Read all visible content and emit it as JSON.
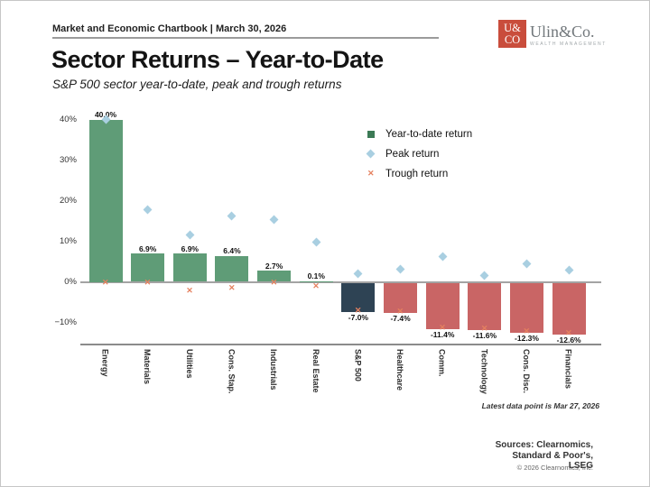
{
  "header": {
    "kicker": "Market and Economic Chartbook | March 30, 2026",
    "logo_square_line1": "U&",
    "logo_square_line2": "CO",
    "logo_name": "Ulin&Co.",
    "logo_sub": "WEALTH MANAGEMENT"
  },
  "title": "Sector Returns – Year-to-Date",
  "subtitle": "S&P 500 sector year-to-date, peak and trough returns",
  "legend": {
    "ytd_label": "Year-to-date return",
    "peak_label": "Peak return",
    "trough_label": "Trough return"
  },
  "colors": {
    "bar_positive": "#5f9c77",
    "bar_sp500": "#2e4354",
    "bar_negative": "#c96565",
    "peak_marker": "#a9cfe1",
    "trough_marker": "#e5815f",
    "legend_green": "#3c7a55"
  },
  "chart_data": {
    "type": "bar",
    "title": "Sector Returns – Year-to-Date",
    "xlabel": "",
    "ylabel": "",
    "ylim": [
      -15,
      42
    ],
    "grid": false,
    "legend_position": "upper center-right",
    "categories": [
      "Energy",
      "Materials",
      "Utilities",
      "Cons. Stap.",
      "Industrials",
      "Real Estate",
      "S&P 500",
      "Healthcare",
      "Comm.",
      "Technology",
      "Cons. Disc.",
      "Financials"
    ],
    "series": [
      {
        "name": "Year-to-date return",
        "values": [
          40.0,
          6.9,
          6.9,
          6.4,
          2.7,
          0.1,
          -7.0,
          -7.4,
          -11.4,
          -11.6,
          -12.3,
          -12.6
        ]
      },
      {
        "name": "Peak return",
        "values": [
          40.0,
          17.8,
          11.5,
          16.2,
          15.3,
          9.7,
          2.0,
          3.2,
          6.2,
          1.6,
          4.5,
          2.8
        ]
      },
      {
        "name": "Trough return",
        "values": [
          -0.2,
          -0.2,
          -2.3,
          -1.5,
          -0.3,
          -1.0,
          -7.0,
          -7.4,
          -11.4,
          -11.6,
          -12.3,
          -12.6
        ]
      }
    ],
    "bar_value_labels": [
      "40.0%",
      "6.9%",
      "6.9%",
      "6.4%",
      "2.7%",
      "0.1%",
      "-7.0%",
      "-7.4%",
      "-11.4%",
      "-11.6%",
      "-12.3%",
      "-12.6%"
    ],
    "color_roles": [
      "bar_positive",
      "bar_positive",
      "bar_positive",
      "bar_positive",
      "bar_positive",
      "bar_positive",
      "bar_sp500",
      "bar_negative",
      "bar_negative",
      "bar_negative",
      "bar_negative",
      "bar_negative"
    ],
    "yticks": [
      {
        "label": "40%",
        "value": 40
      },
      {
        "label": "30%",
        "value": 30
      },
      {
        "label": "20%",
        "value": 20
      },
      {
        "label": "10%",
        "value": 10
      },
      {
        "label": "0%",
        "value": 0
      },
      {
        "label": "−10%",
        "value": -10
      }
    ]
  },
  "footnote": "Latest data point is Mar 27, 2026",
  "sources_line1": "Sources: Clearnomics,",
  "sources_line2": "Standard & Poor's,",
  "sources_line3": "LSEG",
  "copyright": "© 2026 Clearnomics, Inc."
}
